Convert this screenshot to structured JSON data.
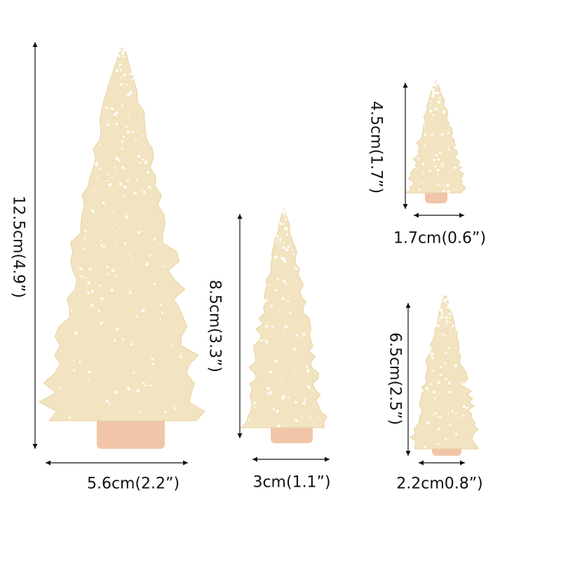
{
  "colors": {
    "foliage": "#f2e4c0",
    "snow": "#ffffff",
    "base": "#f1c6a8",
    "line": "#111111"
  },
  "trees": [
    {
      "name": "tree-12-5cm",
      "height_label": "12.5cm(4.9”)",
      "width_label": "5.6cm(2.2”)"
    },
    {
      "name": "tree-8-5cm",
      "height_label": "8.5cm(3.3”)",
      "width_label": "3cm(1.1”)"
    },
    {
      "name": "tree-4-5cm",
      "height_label": "4.5cm(1.7”)",
      "width_label": "1.7cm(0.6”)"
    },
    {
      "name": "tree-6-5cm",
      "height_label": "6.5cm(2.5”)",
      "width_label": "2.2cm0.8”)"
    }
  ]
}
